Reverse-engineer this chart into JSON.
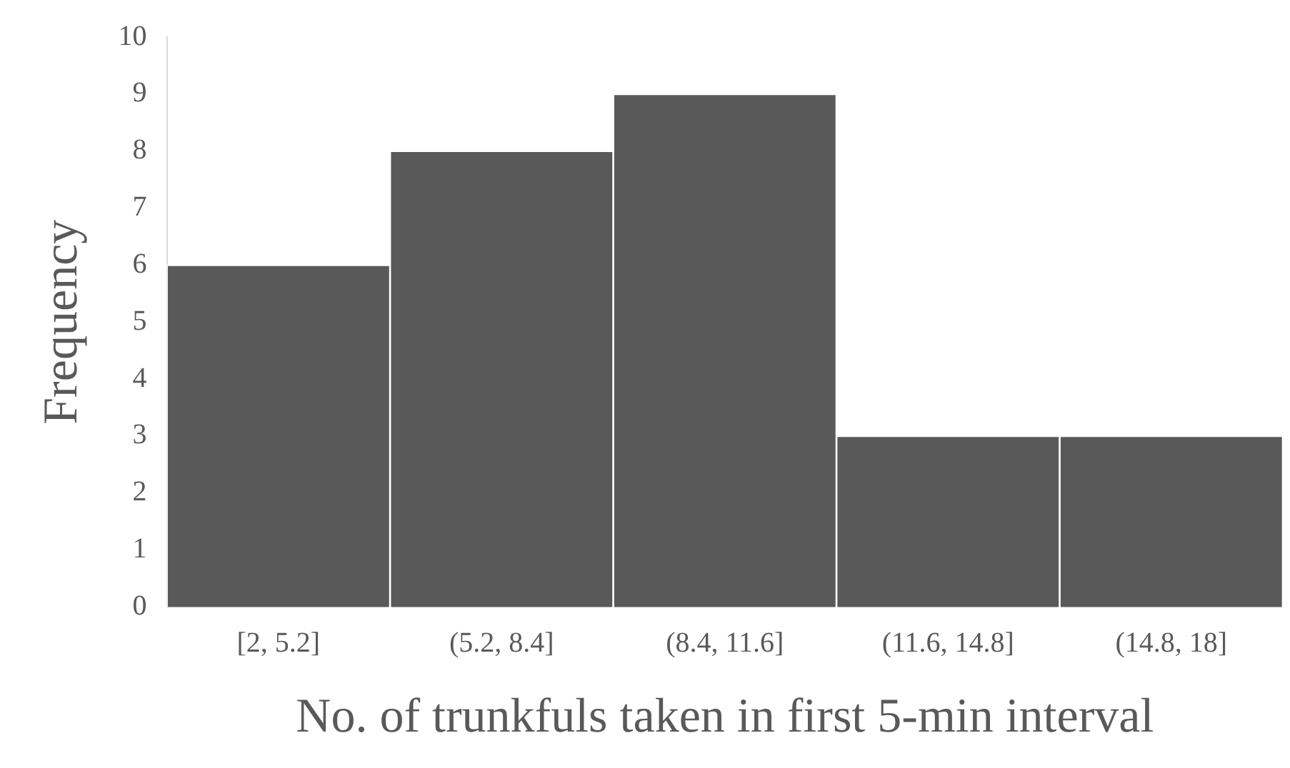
{
  "chart_data": {
    "type": "bar",
    "xlabel": "No. of trunkfuls taken in first 5-min interval",
    "ylabel": "Frequency",
    "categories": [
      "[2, 5.2]",
      "(5.2, 8.4]",
      "(8.4, 11.6]",
      "(11.6, 14.8]",
      "(14.8, 18]"
    ],
    "values": [
      6,
      8,
      9,
      3,
      3
    ],
    "color": "#595959",
    "ylim": [
      0,
      10
    ],
    "yticks": [
      0,
      1,
      2,
      3,
      4,
      5,
      6,
      7,
      8,
      9,
      10
    ]
  }
}
